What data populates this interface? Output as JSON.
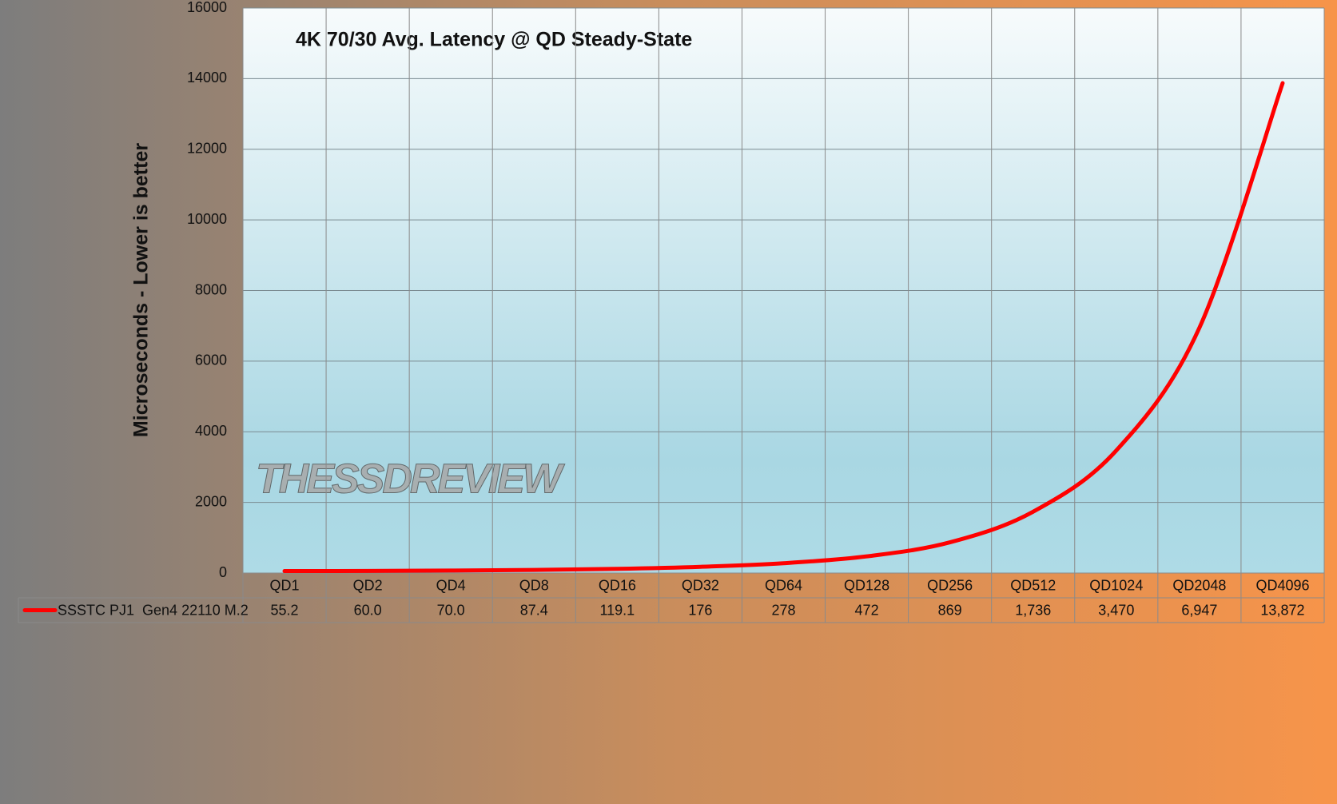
{
  "chart_data": {
    "type": "line",
    "title": "4K 70/30 Avg. Latency @ QD Steady-State",
    "y_label": "Microseconds - Lower is better",
    "watermark": "THESSDREVIEW",
    "categories": [
      "QD1",
      "QD2",
      "QD4",
      "QD8",
      "QD16",
      "QD32",
      "QD64",
      "QD128",
      "QD256",
      "QD512",
      "QD1024",
      "QD2048",
      "QD4096"
    ],
    "series": [
      {
        "name": "SSSTC PJ1  Gen4 22110 M.2",
        "color": "#ff0000",
        "values": [
          55.2,
          60.0,
          70.0,
          87.4,
          119.1,
          176,
          278,
          472,
          869,
          1736,
          3470,
          6947,
          13872
        ],
        "value_labels": [
          "55.2",
          "60.0",
          "70.0",
          "87.4",
          "119.1",
          "176",
          "278",
          "472",
          "869",
          "1,736",
          "3,470",
          "6,947",
          "13,872"
        ]
      }
    ],
    "ylim": [
      0,
      16000
    ],
    "yticks": [
      0,
      2000,
      4000,
      6000,
      8000,
      10000,
      12000,
      14000,
      16000
    ],
    "grid": true
  }
}
